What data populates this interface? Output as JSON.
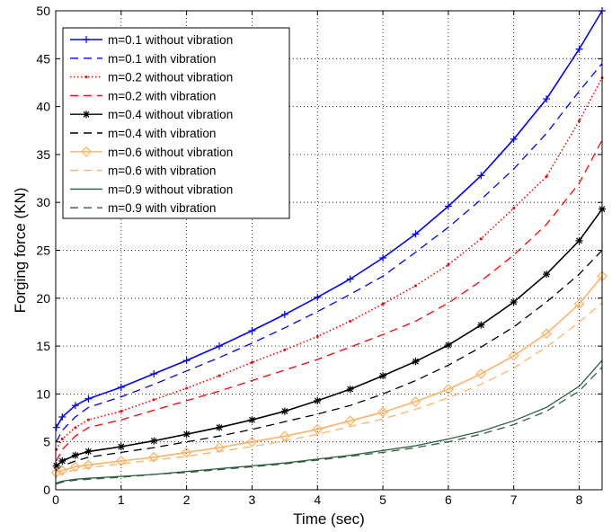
{
  "chart_data": {
    "type": "line",
    "xlabel": "Time (sec)",
    "ylabel": "Forging force (KN)",
    "xlim": [
      0,
      8.35
    ],
    "ylim": [
      0,
      50
    ],
    "xticks": [
      0,
      1,
      2,
      3,
      4,
      5,
      6,
      7,
      8
    ],
    "yticks": [
      0,
      5,
      10,
      15,
      20,
      25,
      30,
      35,
      40,
      45,
      50
    ],
    "grid": true,
    "legend_position": "top-left",
    "x": [
      0.01,
      0.1,
      0.3,
      0.5,
      1,
      1.5,
      2,
      2.5,
      3,
      3.5,
      4,
      4.5,
      5,
      5.5,
      6,
      6.5,
      7,
      7.5,
      8,
      8.35
    ],
    "series": [
      {
        "name": "m=0.1 without vibration",
        "color": "#0000ff",
        "style": "solid",
        "marker": "plus",
        "values": [
          6.5,
          7.6,
          8.8,
          9.5,
          10.7,
          12.1,
          13.5,
          15.0,
          16.6,
          18.3,
          20.1,
          22.0,
          24.2,
          26.7,
          29.6,
          32.8,
          36.6,
          40.8,
          46.0,
          50.0
        ]
      },
      {
        "name": "m=0.1 with vibration",
        "color": "#0000ff",
        "style": "dashed",
        "marker": "none",
        "values": [
          5.0,
          6.2,
          7.6,
          8.6,
          9.7,
          11.0,
          12.4,
          13.8,
          15.3,
          16.9,
          18.6,
          20.4,
          22.3,
          24.8,
          27.4,
          30.3,
          33.5,
          37.2,
          41.6,
          44.5
        ]
      },
      {
        "name": "m=0.2 without vibration",
        "color": "#ff0000",
        "style": "dotted",
        "marker": "point",
        "values": [
          4.2,
          5.3,
          6.5,
          7.3,
          8.2,
          9.4,
          10.6,
          11.9,
          13.3,
          14.6,
          16.0,
          17.6,
          19.4,
          21.3,
          23.5,
          26.2,
          29.4,
          32.7,
          38.5,
          43.0
        ]
      },
      {
        "name": "m=0.2 with vibration",
        "color": "#ff0000",
        "style": "dashed",
        "marker": "none",
        "values": [
          3.0,
          4.2,
          5.6,
          6.5,
          7.3,
          8.3,
          9.3,
          10.3,
          11.4,
          12.5,
          13.6,
          14.9,
          16.2,
          17.6,
          19.5,
          21.8,
          24.5,
          27.7,
          32.0,
          36.5
        ]
      },
      {
        "name": "m=0.4 without vibration",
        "color": "#000000",
        "style": "solid",
        "marker": "star",
        "values": [
          2.5,
          3.0,
          3.6,
          4.0,
          4.5,
          5.1,
          5.8,
          6.5,
          7.3,
          8.2,
          9.3,
          10.5,
          11.9,
          13.4,
          15.1,
          17.2,
          19.6,
          22.5,
          26.0,
          29.3
        ]
      },
      {
        "name": "m=0.4 with vibration",
        "color": "#000000",
        "style": "dashed",
        "marker": "none",
        "values": [
          2.0,
          2.5,
          3.0,
          3.4,
          3.9,
          4.4,
          5.0,
          5.6,
          6.3,
          7.1,
          7.9,
          8.8,
          10.0,
          11.4,
          13.0,
          14.9,
          17.0,
          19.6,
          22.5,
          25.0
        ]
      },
      {
        "name": "m=0.6 without vibration",
        "color": "#ffb366",
        "style": "solid",
        "marker": "diamond",
        "values": [
          1.8,
          2.0,
          2.4,
          2.6,
          3.0,
          3.4,
          3.9,
          4.4,
          5.0,
          5.6,
          6.3,
          7.2,
          8.1,
          9.2,
          10.5,
          12.1,
          14.0,
          16.3,
          19.4,
          22.3
        ]
      },
      {
        "name": "m=0.6 with vibration",
        "color": "#ffb366",
        "style": "dashed",
        "marker": "none",
        "values": [
          1.5,
          1.7,
          2.1,
          2.3,
          2.7,
          3.1,
          3.5,
          4.0,
          4.5,
          5.1,
          5.8,
          6.6,
          7.4,
          8.4,
          9.6,
          11.0,
          12.7,
          14.9,
          17.5,
          19.5
        ]
      },
      {
        "name": "m=0.9 without vibration",
        "color": "#2e5e3e",
        "style": "solid",
        "marker": "none",
        "values": [
          0.7,
          0.9,
          1.1,
          1.2,
          1.4,
          1.6,
          1.9,
          2.2,
          2.5,
          2.8,
          3.2,
          3.6,
          4.1,
          4.6,
          5.3,
          6.1,
          7.2,
          8.6,
          10.8,
          13.5
        ]
      },
      {
        "name": "m=0.9 with vibration",
        "color": "#2e5e3e",
        "style": "dashed",
        "marker": "none",
        "values": [
          0.6,
          0.8,
          1.0,
          1.1,
          1.3,
          1.6,
          1.8,
          2.1,
          2.4,
          2.7,
          3.1,
          3.5,
          3.9,
          4.4,
          5.0,
          5.8,
          6.8,
          8.2,
          10.3,
          12.8
        ]
      }
    ]
  }
}
